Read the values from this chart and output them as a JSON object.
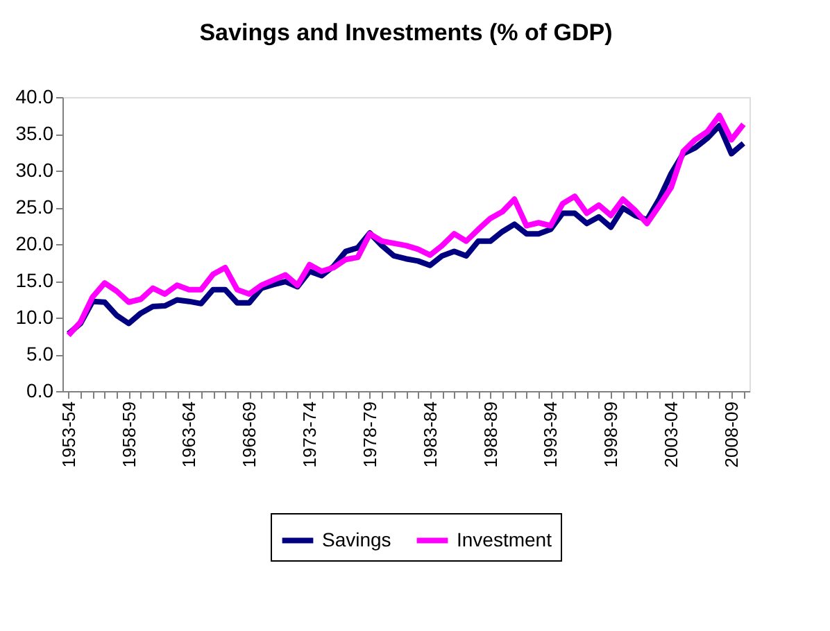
{
  "chart_data": {
    "type": "line",
    "title": "Savings and Investments (% of GDP)",
    "categories": [
      "1953-54",
      null,
      null,
      null,
      null,
      "1958-59",
      null,
      null,
      null,
      null,
      "1963-64",
      null,
      null,
      null,
      null,
      "1968-69",
      null,
      null,
      null,
      null,
      "1973-74",
      null,
      null,
      null,
      null,
      "1978-79",
      null,
      null,
      null,
      null,
      "1983-84",
      null,
      null,
      null,
      null,
      "1988-89",
      null,
      null,
      null,
      null,
      "1993-94",
      null,
      null,
      null,
      null,
      "1998-99",
      null,
      null,
      null,
      null,
      "2003-04",
      null,
      null,
      null,
      null,
      "2008-09",
      null
    ],
    "series": [
      {
        "name": "Savings",
        "color": "#000080",
        "values": [
          7.8,
          9.2,
          12.2,
          12.1,
          10.3,
          9.2,
          10.6,
          11.5,
          11.6,
          12.4,
          12.2,
          11.9,
          13.8,
          13.8,
          12.0,
          12.0,
          14.0,
          14.5,
          14.9,
          14.2,
          16.3,
          15.7,
          17.0,
          19.0,
          19.5,
          21.5,
          19.8,
          18.4,
          18.0,
          17.7,
          17.1,
          18.4,
          19.0,
          18.4,
          20.4,
          20.4,
          21.7,
          22.7,
          21.4,
          21.4,
          22.0,
          24.2,
          24.2,
          22.8,
          23.7,
          22.3,
          24.9,
          23.9,
          23.3,
          26.1,
          29.6,
          32.3,
          33.1,
          34.4,
          36.1,
          32.3,
          33.7
        ]
      },
      {
        "name": "Investment",
        "color": "#ff00ff",
        "values": [
          7.6,
          9.4,
          12.8,
          14.7,
          13.6,
          12.1,
          12.5,
          14.0,
          13.2,
          14.4,
          13.8,
          13.8,
          15.9,
          16.8,
          13.8,
          13.2,
          14.4,
          15.1,
          15.8,
          14.4,
          17.2,
          16.3,
          16.8,
          17.9,
          18.2,
          21.4,
          20.4,
          20.1,
          19.8,
          19.3,
          18.5,
          19.8,
          21.4,
          20.4,
          22.0,
          23.5,
          24.4,
          26.1,
          22.5,
          22.9,
          22.5,
          25.5,
          26.5,
          24.2,
          25.3,
          23.9,
          26.1,
          24.6,
          22.8,
          25.2,
          27.7,
          32.6,
          34.2,
          35.3,
          37.5,
          34.2,
          36.3
        ]
      }
    ],
    "ylim": [
      0,
      40
    ],
    "yticks": [
      {
        "value": 0,
        "label": "0.0"
      },
      {
        "value": 5,
        "label": "5.0"
      },
      {
        "value": 10,
        "label": "10.0"
      },
      {
        "value": 15,
        "label": "15.0"
      },
      {
        "value": 20,
        "label": "20.0"
      },
      {
        "value": 25,
        "label": "25.0"
      },
      {
        "value": 30,
        "label": "30.0"
      },
      {
        "value": 35,
        "label": "35.0"
      },
      {
        "value": 40,
        "label": "40.0"
      }
    ],
    "grid": false,
    "legend": "bottom",
    "marker": "none",
    "line_style": "solid"
  }
}
